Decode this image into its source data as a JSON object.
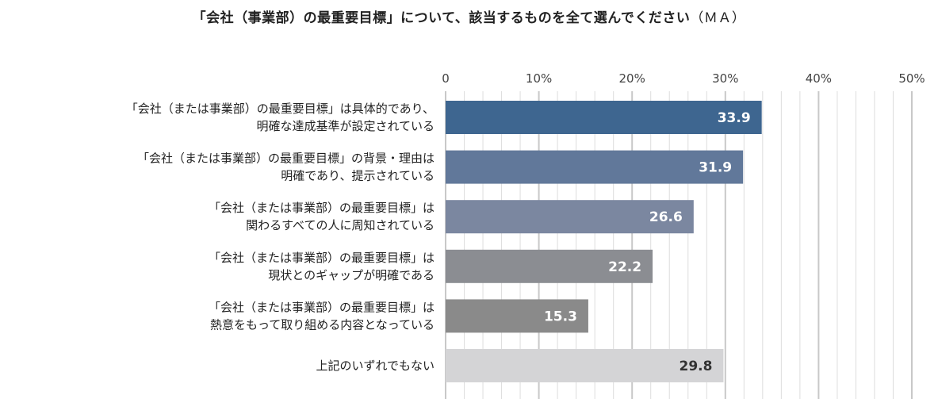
{
  "chart_data": {
    "type": "bar",
    "orientation": "horizontal",
    "title": "「会社（事業部）の最重要目標」について、該当するものを全て選んでください",
    "title_note": "（ＭＡ）",
    "xlabel": "",
    "ylabel": "",
    "xlim": [
      0,
      50
    ],
    "tick_values": [
      0,
      10,
      20,
      30,
      40,
      50
    ],
    "tick_labels": [
      "0",
      "10%",
      "20%",
      "30%",
      "40%",
      "50%"
    ],
    "minor_grid_step": 2,
    "grid": true,
    "legend": "none",
    "categories": [
      [
        "「会社（または事業部）の最重要目標」は具体的であり、",
        "明確な達成基準が設定されている"
      ],
      [
        "「会社（または事業部）の最重要目標」の背景・理由は",
        "明確であり、提示されている"
      ],
      [
        "「会社（または事業部）の最重要目標」は",
        "関わるすべての人に周知されている"
      ],
      [
        "「会社（または事業部）の最重要目標」は",
        "現状とのギャップが明確である"
      ],
      [
        "「会社（または事業部）の最重要目標」は",
        "熱意をもって取り組める内容となっている"
      ],
      [
        "上記のいずれでもない"
      ]
    ],
    "values": [
      33.9,
      31.9,
      26.6,
      22.2,
      15.3,
      29.8
    ],
    "value_labels": [
      "33.9",
      "31.9",
      "26.6",
      "22.2",
      "15.3",
      "29.8"
    ],
    "bar_colors": [
      "#3e6690",
      "#61789a",
      "#7b87a0",
      "#8b8d92",
      "#8a8a8a",
      "#d4d4d6"
    ],
    "value_label_colors": [
      "#ffffff",
      "#ffffff",
      "#ffffff",
      "#ffffff",
      "#ffffff",
      "#333333"
    ],
    "gridline_color": "#dddddd",
    "major_gridline_color": "#c8c8c8"
  }
}
